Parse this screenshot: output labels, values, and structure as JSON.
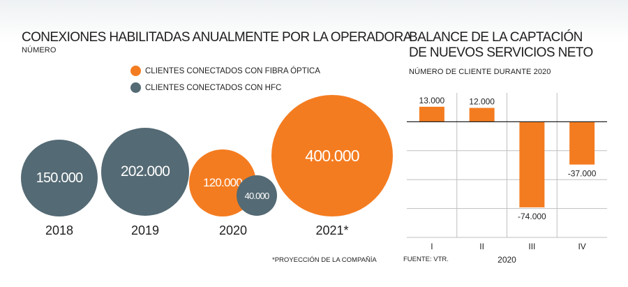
{
  "colors": {
    "fiber": "#f47c20",
    "hfc": "#546a74",
    "text": "#1e1e1e",
    "grid": "#bfbfbf"
  },
  "left_title": "CONEXIONES HABILITADAS ANUALMENTE POR LA OPERADORA",
  "left_subtitle": "NÚMERO",
  "legend": {
    "fiber": "CLIENTES CONECTADOS CON FIBRA ÓPTICA",
    "hfc": "CLIENTES CONECTADOS CON HFC"
  },
  "right_title_line1": "BALANCE DE LA CAPTACIÓN",
  "right_title_line2": "DE NUEVOS SERVICIOS NETO",
  "right_subtitle": "NÚMERO DE CLIENTE DURANTE 2020",
  "footnote": "*PROYECCIÓN DE LA COMPAÑÍA",
  "source": "FUENTE: VTR.",
  "chart_data": [
    {
      "type": "scatter",
      "title": "CONEXIONES HABILITADAS ANUALMENTE POR LA OPERADORA",
      "subtitle": "NÚMERO",
      "categories": [
        "2018",
        "2019",
        "2020",
        "2021*"
      ],
      "series": [
        {
          "name": "CLIENTES CONECTADOS CON HFC",
          "values": [
            150000,
            202000,
            40000,
            null
          ],
          "labels": [
            "150.000",
            "202.000",
            "40.000",
            ""
          ]
        },
        {
          "name": "CLIENTES CONECTADOS CON FIBRA ÓPTICA",
          "values": [
            null,
            null,
            120000,
            400000
          ],
          "labels": [
            "",
            "",
            "120.000",
            "400.000"
          ]
        }
      ]
    },
    {
      "type": "bar",
      "title": "BALANCE DE LA CAPTACIÓN DE NUEVOS SERVICIOS NETO",
      "subtitle": "NÚMERO DE CLIENTE DURANTE 2020",
      "categories": [
        "I",
        "II",
        "III",
        "IV"
      ],
      "values": [
        13000,
        12000,
        -74000,
        -37000
      ],
      "labels": [
        "13.000",
        "12.000",
        "-74.000",
        "-37.000"
      ],
      "xlabel": "2020",
      "ylim": [
        -100000,
        25000
      ],
      "grid": true
    }
  ]
}
